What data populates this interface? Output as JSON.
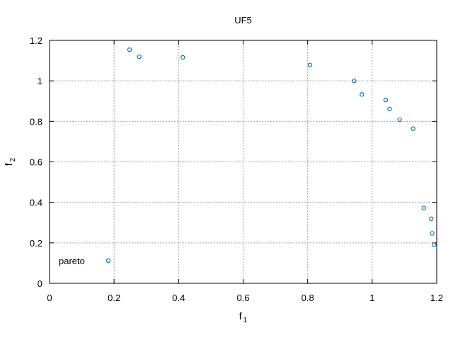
{
  "chart_data": {
    "type": "scatter",
    "title": "UF5",
    "xlabel": {
      "base": "f",
      "sub": "1"
    },
    "ylabel": {
      "base": "f",
      "sub": "2"
    },
    "xlim": [
      0,
      1.2
    ],
    "ylim": [
      0,
      1.2
    ],
    "xticks": [
      0,
      0.2,
      0.4,
      0.6,
      0.8,
      1,
      1.2
    ],
    "yticks": [
      0,
      0.2,
      0.4,
      0.6,
      0.8,
      1,
      1.2
    ],
    "xtick_labels": [
      "0",
      "0.2",
      "0.4",
      "0.6",
      "0.8",
      "1",
      "1.2"
    ],
    "ytick_labels": [
      "0",
      "0.2",
      "0.4",
      "0.6",
      "0.8",
      "1",
      "1.2"
    ],
    "grid": true,
    "legend_position": "bottom-left",
    "series": [
      {
        "name": "pareto",
        "color": "#0072bd",
        "marker": "circle",
        "points": [
          {
            "x": 0.248,
            "y": 1.154
          },
          {
            "x": 0.278,
            "y": 1.119
          },
          {
            "x": 0.413,
            "y": 1.116
          },
          {
            "x": 0.807,
            "y": 1.078
          },
          {
            "x": 0.944,
            "y": 1.0
          },
          {
            "x": 0.968,
            "y": 0.933
          },
          {
            "x": 1.042,
            "y": 0.906
          },
          {
            "x": 1.054,
            "y": 0.861
          },
          {
            "x": 1.085,
            "y": 0.808
          },
          {
            "x": 1.127,
            "y": 0.764
          },
          {
            "x": 1.16,
            "y": 0.372
          },
          {
            "x": 1.183,
            "y": 0.319
          },
          {
            "x": 1.186,
            "y": 0.247
          },
          {
            "x": 1.192,
            "y": 0.191
          }
        ]
      }
    ]
  }
}
